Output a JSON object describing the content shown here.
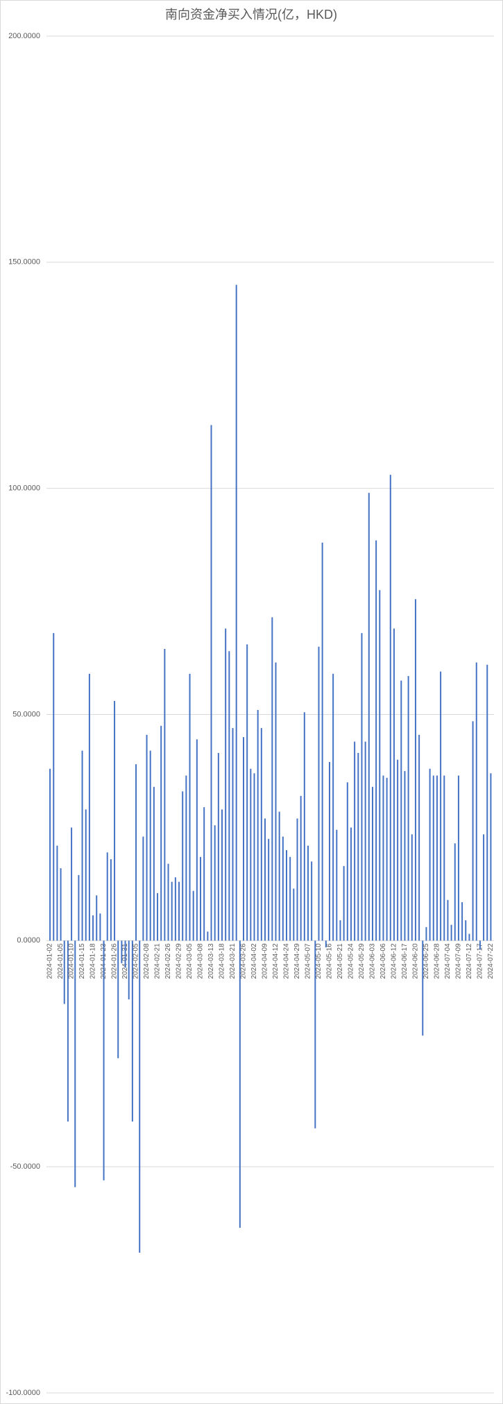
{
  "chart_data": {
    "type": "bar",
    "title": "南向资金净买入情况(亿，HKD)",
    "categories": [
      "2024-01-02",
      null,
      null,
      "2024-01-05",
      null,
      null,
      "2024-01-10",
      null,
      null,
      "2024-01-15",
      null,
      null,
      "2024-01-18",
      null,
      null,
      "2024-01-23",
      null,
      null,
      "2024-01-26",
      null,
      null,
      "2024-01-31",
      null,
      null,
      "2024-02-05",
      null,
      null,
      "2024-02-08",
      null,
      null,
      "2024-02-21",
      null,
      null,
      "2024-02-26",
      null,
      null,
      "2024-02-29",
      null,
      null,
      "2024-03-05",
      null,
      null,
      "2024-03-08",
      null,
      null,
      "2024-03-13",
      null,
      null,
      "2024-03-18",
      null,
      null,
      "2024-03-21",
      null,
      null,
      "2024-03-26",
      null,
      null,
      "2024-04-02",
      null,
      null,
      "2024-04-09",
      null,
      null,
      "2024-04-12",
      null,
      null,
      "2024-04-24",
      null,
      null,
      "2024-04-29",
      null,
      null,
      "2024-05-07",
      null,
      null,
      "2024-05-10",
      null,
      null,
      "2024-05-16",
      null,
      null,
      "2024-05-21",
      null,
      null,
      "2024-05-24",
      null,
      null,
      "2024-05-29",
      null,
      null,
      "2024-06-03",
      null,
      null,
      "2024-06-06",
      null,
      null,
      "2024-06-12",
      null,
      null,
      "2024-06-17",
      null,
      null,
      "2024-06-20",
      null,
      null,
      "2024-06-25",
      null,
      null,
      "2024-06-28",
      null,
      null,
      "2024-07-04",
      null,
      null,
      "2024-07-09",
      null,
      null,
      "2024-07-12",
      null,
      null,
      "2024-07-17",
      null,
      null,
      "2024-07-22"
    ],
    "values": [
      38,
      68,
      21,
      16,
      -14,
      -40,
      25,
      -54.5,
      14.5,
      42,
      29,
      59,
      5.6,
      10,
      6,
      -53,
      19.5,
      18,
      53,
      -26,
      -5,
      -6,
      -13,
      -40,
      39,
      -69,
      23,
      45.5,
      42,
      34,
      10.5,
      47.5,
      64.5,
      17,
      13,
      14,
      13,
      33,
      36.5,
      59,
      11,
      44.5,
      18.5,
      29.5,
      2,
      114,
      25.5,
      41.5,
      29,
      69,
      64,
      47,
      145,
      -63.5,
      45,
      65.5,
      38,
      37,
      51,
      47,
      27,
      22.5,
      71.5,
      61.5,
      28.5,
      23,
      20,
      18.5,
      11.5,
      27,
      32,
      50.5,
      21,
      17.5,
      -41.5,
      65,
      88,
      -1.5,
      39.5,
      59,
      24.5,
      4.5,
      16.5,
      35,
      25,
      44,
      41.5,
      68,
      44,
      99,
      34,
      88.5,
      77.5,
      36.5,
      36,
      103,
      69,
      40,
      57.5,
      37.5,
      58.5,
      23.5,
      75.5,
      45.5,
      -21,
      3,
      38,
      36.5,
      36.5,
      59.5,
      36.5,
      9,
      3.5,
      21.5,
      36.5,
      8.5,
      4.5,
      1.5,
      48.5,
      61.5,
      -2,
      23.5,
      61,
      37
    ],
    "color": "#4472c4",
    "ylim": [
      -100,
      200
    ],
    "yticks": [
      {
        "value": -100,
        "label": "-100.0000"
      },
      {
        "value": -50,
        "label": "-50.0000"
      },
      {
        "value": 0,
        "label": "0.0000"
      },
      {
        "value": 50,
        "label": "50.0000"
      },
      {
        "value": 100,
        "label": "100.0000"
      },
      {
        "value": 150,
        "label": "150.0000"
      },
      {
        "value": 200,
        "label": "200.0000"
      }
    ],
    "grid": true
  }
}
